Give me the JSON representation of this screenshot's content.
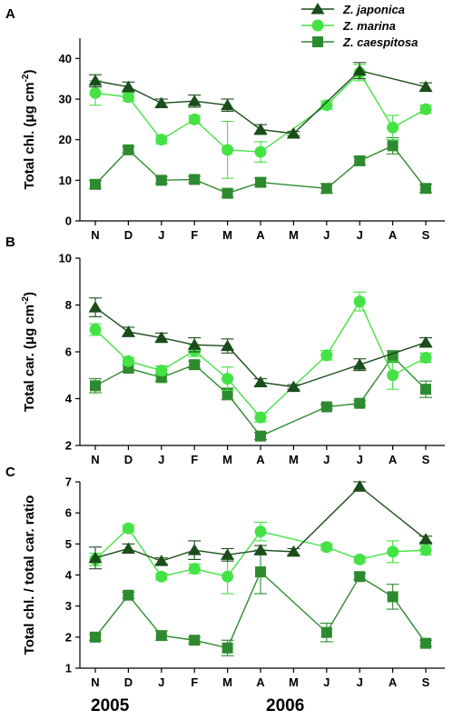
{
  "colors": {
    "Z. japonica": "#1b4d1b",
    "Z. marina": "#44e244",
    "Z. caespitosa": "#2e8a2e"
  },
  "years": [
    "2005",
    "2006"
  ],
  "chart_data": [
    {
      "type": "line",
      "panel": "A",
      "ylabel_main": "Total chl. (μg cm",
      "ylabel_sup": "-2",
      "ylabel_end": ")",
      "categories": [
        "N",
        "D",
        "J",
        "F",
        "M",
        "A",
        "M",
        "J",
        "J",
        "A",
        "S"
      ],
      "ylim": [
        0,
        45
      ],
      "yticks": [
        0,
        10,
        20,
        30,
        40
      ],
      "series": [
        {
          "name": "Z. japonica",
          "marker": "triangle",
          "values": [
            34.5,
            33,
            29,
            29.5,
            28.5,
            22.5,
            21.5,
            null,
            37,
            null,
            33
          ],
          "errors": [
            1.5,
            1.2,
            1,
            1.5,
            1.5,
            1.2,
            0.5,
            null,
            2,
            null,
            1
          ]
        },
        {
          "name": "Z. marina",
          "marker": "circle",
          "values": [
            31.5,
            30.5,
            20,
            25,
            17.5,
            17,
            null,
            28.5,
            36.5,
            23,
            27.5
          ],
          "errors": [
            3,
            1,
            1,
            1,
            7,
            2.5,
            null,
            1,
            2,
            3,
            1
          ]
        },
        {
          "name": "Z. caespitosa",
          "marker": "square",
          "values": [
            9,
            17.5,
            10,
            10.2,
            6.8,
            9.5,
            null,
            8,
            14.8,
            18.5,
            8
          ],
          "errors": [
            1,
            0.8,
            0.8,
            0.8,
            1,
            1,
            null,
            1.2,
            1,
            2,
            1
          ]
        }
      ]
    },
    {
      "type": "line",
      "panel": "B",
      "ylabel_main": "Total car. (μg cm",
      "ylabel_sup": "-2",
      "ylabel_end": ")",
      "categories": [
        "N",
        "D",
        "J",
        "F",
        "M",
        "A",
        "M",
        "J",
        "J",
        "A",
        "S"
      ],
      "ylim": [
        2,
        10
      ],
      "yticks": [
        2,
        4,
        6,
        8,
        10
      ],
      "series": [
        {
          "name": "Z. japonica",
          "marker": "triangle",
          "values": [
            7.9,
            6.85,
            6.6,
            6.3,
            6.25,
            4.7,
            4.5,
            null,
            5.45,
            null,
            6.4
          ],
          "errors": [
            0.4,
            0.2,
            0.2,
            0.3,
            0.3,
            0.15,
            0.1,
            null,
            0.25,
            null,
            0.2
          ]
        },
        {
          "name": "Z. marina",
          "marker": "circle",
          "values": [
            6.95,
            5.6,
            5.2,
            6.05,
            4.85,
            3.2,
            null,
            5.85,
            8.15,
            5,
            5.75
          ],
          "errors": [
            0.25,
            0.15,
            0.2,
            0.25,
            0.5,
            0.2,
            null,
            0.2,
            0.4,
            0.6,
            0.2
          ]
        },
        {
          "name": "Z. caespitosa",
          "marker": "square",
          "values": [
            4.55,
            5.3,
            4.9,
            5.45,
            4.2,
            2.4,
            null,
            3.65,
            3.8,
            5.8,
            4.4
          ],
          "errors": [
            0.3,
            0.15,
            0.15,
            0.15,
            0.25,
            0.15,
            null,
            0.1,
            0.1,
            0.25,
            0.35
          ]
        }
      ]
    },
    {
      "type": "line",
      "panel": "C",
      "ylabel_main": "Total chl. / total car. ratio",
      "ylabel_sup": "",
      "ylabel_end": "",
      "categories": [
        "N",
        "D",
        "J",
        "F",
        "M",
        "A",
        "M",
        "J",
        "J",
        "A",
        "S"
      ],
      "ylim": [
        1,
        7
      ],
      "yticks": [
        1,
        2,
        3,
        4,
        5,
        6,
        7
      ],
      "series": [
        {
          "name": "Z. japonica",
          "marker": "triangle",
          "values": [
            4.55,
            4.85,
            4.45,
            4.8,
            4.65,
            4.8,
            4.75,
            null,
            6.85,
            null,
            5.15
          ],
          "errors": [
            0.35,
            0.15,
            0.1,
            0.3,
            0.2,
            0.15,
            0.1,
            null,
            0.15,
            null,
            0.1
          ]
        },
        {
          "name": "Z. marina",
          "marker": "circle",
          "values": [
            4.5,
            5.5,
            3.95,
            4.2,
            3.95,
            5.4,
            null,
            4.9,
            4.5,
            4.75,
            4.8
          ],
          "errors": [
            0.2,
            0.1,
            0.1,
            0.15,
            0.55,
            0.3,
            null,
            0.1,
            0.1,
            0.35,
            0.15
          ]
        },
        {
          "name": "Z. caespitosa",
          "marker": "square",
          "values": [
            2,
            3.35,
            2.05,
            1.9,
            1.65,
            4.1,
            null,
            2.15,
            3.95,
            3.3,
            1.8
          ],
          "errors": [
            0.1,
            0.1,
            0.15,
            0.1,
            0.25,
            0.7,
            null,
            0.3,
            0.1,
            0.4,
            0.1
          ]
        }
      ]
    }
  ]
}
